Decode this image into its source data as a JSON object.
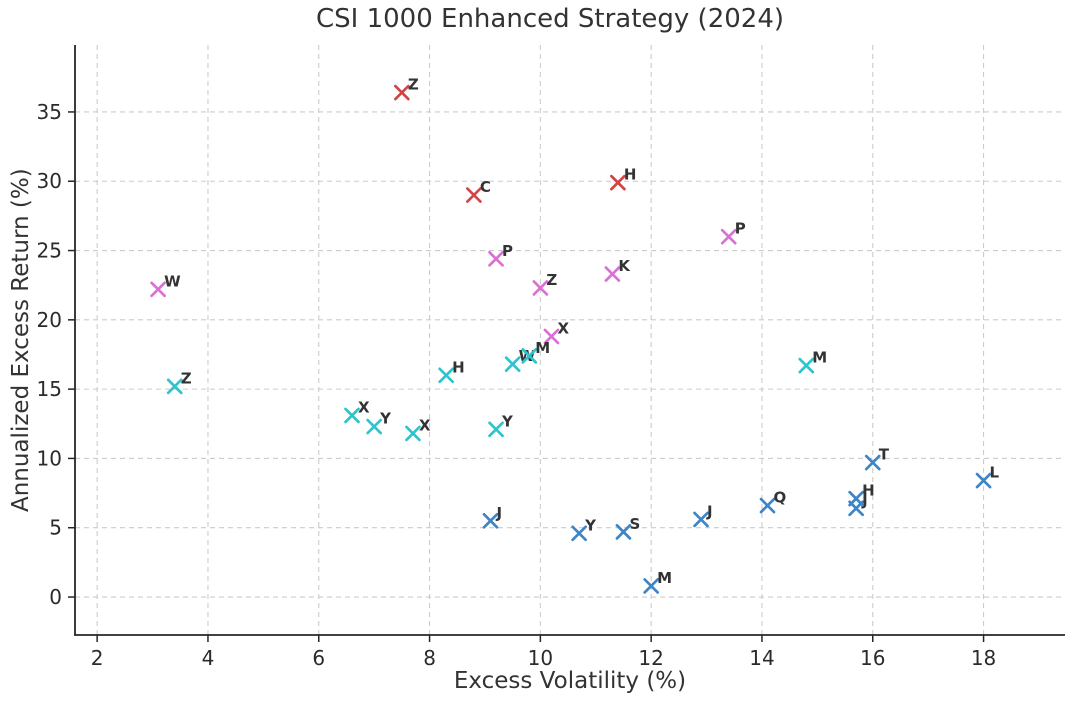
{
  "title": "CSI 1000 Enhanced Strategy (2024)",
  "chart_data": {
    "type": "scatter",
    "title": "CSI 1000 Enhanced Strategy (2024)",
    "xlabel": "Excess Volatility (%)",
    "ylabel": "Annualized Excess Return (%)",
    "xlim": [
      1.6,
      19.47
    ],
    "ylim": [
      -2.74,
      39.83
    ],
    "xticks": [
      2,
      4,
      6,
      8,
      10,
      12,
      14,
      16,
      18
    ],
    "yticks": [
      0,
      5,
      10,
      15,
      20,
      25,
      30,
      35
    ],
    "grid": true,
    "grid_style": "dashed",
    "legend": false,
    "marker": "x",
    "colors": {
      "grid": "#cccccc",
      "spine": "#262626",
      "tick_text": "#2b2b2b",
      "point_label": "#333333",
      "background": "#ffffff"
    },
    "series": [
      {
        "name": "red",
        "color": "#d24545",
        "points": [
          {
            "label": "Z",
            "x": 7.5,
            "y": 36.4
          },
          {
            "label": "C",
            "x": 8.8,
            "y": 29.0
          },
          {
            "label": "H",
            "x": 11.4,
            "y": 29.9
          }
        ]
      },
      {
        "name": "pink",
        "color": "#da70d6",
        "points": [
          {
            "label": "W",
            "x": 3.1,
            "y": 22.2
          },
          {
            "label": "P",
            "x": 9.2,
            "y": 24.4
          },
          {
            "label": "Z",
            "x": 10.0,
            "y": 22.3
          },
          {
            "label": "X",
            "x": 10.2,
            "y": 18.8
          },
          {
            "label": "K",
            "x": 11.3,
            "y": 23.3
          },
          {
            "label": "P",
            "x": 13.4,
            "y": 26.0
          }
        ]
      },
      {
        "name": "cyan",
        "color": "#2ec4cd",
        "points": [
          {
            "label": "Z",
            "x": 3.4,
            "y": 15.2
          },
          {
            "label": "X",
            "x": 6.6,
            "y": 13.1
          },
          {
            "label": "Y",
            "x": 7.0,
            "y": 12.3
          },
          {
            "label": "X",
            "x": 7.7,
            "y": 11.8
          },
          {
            "label": "H",
            "x": 8.3,
            "y": 16.0
          },
          {
            "label": "Y",
            "x": 9.2,
            "y": 12.1
          },
          {
            "label": "W",
            "x": 9.5,
            "y": 16.8
          },
          {
            "label": "M",
            "x": 9.8,
            "y": 17.4
          },
          {
            "label": "M",
            "x": 14.8,
            "y": 16.7
          }
        ]
      },
      {
        "name": "blue",
        "color": "#3d85c6",
        "points": [
          {
            "label": "J",
            "x": 9.1,
            "y": 5.5
          },
          {
            "label": "Y",
            "x": 10.7,
            "y": 4.6
          },
          {
            "label": "S",
            "x": 11.5,
            "y": 4.7
          },
          {
            "label": "M",
            "x": 12.0,
            "y": 0.8
          },
          {
            "label": "J",
            "x": 12.9,
            "y": 5.6
          },
          {
            "label": "Q",
            "x": 14.1,
            "y": 6.6
          },
          {
            "label": "J",
            "x": 15.7,
            "y": 6.4
          },
          {
            "label": "H",
            "x": 15.7,
            "y": 7.1
          },
          {
            "label": "T",
            "x": 16.0,
            "y": 9.7
          },
          {
            "label": "L",
            "x": 18.0,
            "y": 8.4
          }
        ]
      }
    ]
  }
}
